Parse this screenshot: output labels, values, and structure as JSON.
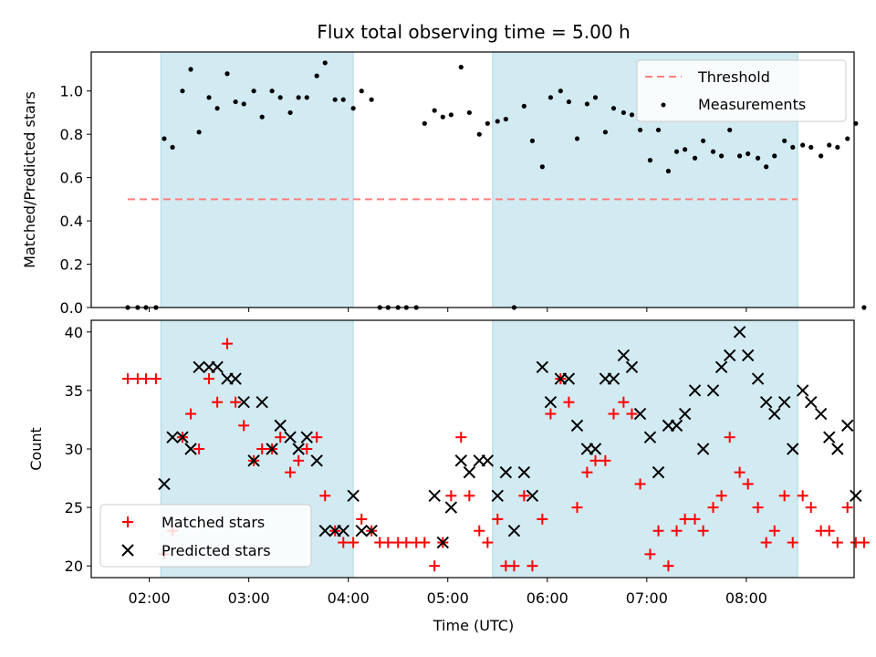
{
  "figure": {
    "title": "Flux total observing time = 5.00 h",
    "xlabel": "Time (UTC)"
  },
  "chart_data": [
    {
      "type": "scatter",
      "name": "ratio-panel",
      "ylabel": "Matched/Predicted stars",
      "xlim": [
        "01:25",
        "09:05"
      ],
      "ylim": [
        0,
        1.18
      ],
      "xticks": [
        "02:00",
        "03:00",
        "04:00",
        "05:00",
        "06:00",
        "07:00",
        "08:00"
      ],
      "yticks": [
        "0.0",
        "0.2",
        "0.4",
        "0.6",
        "0.8",
        "1.0"
      ],
      "shaded_intervals": [
        [
          "02:07",
          "04:03"
        ],
        [
          "05:27",
          "08:31"
        ]
      ],
      "threshold": {
        "name": "Threshold",
        "y": 0.5,
        "x_start": "01:47",
        "x_end": "08:31",
        "color": "#ff7f7f"
      },
      "series": [
        {
          "name": "Measurements",
          "color": "#000000",
          "points": [
            [
              "01:47",
              0.0
            ],
            [
              "01:53",
              0.0
            ],
            [
              "01:58",
              0.0
            ],
            [
              "02:04",
              0.0
            ],
            [
              "02:09",
              0.78
            ],
            [
              "02:14",
              0.74
            ],
            [
              "02:20",
              1.0
            ],
            [
              "02:25",
              1.1
            ],
            [
              "02:30",
              0.81
            ],
            [
              "02:36",
              0.97
            ],
            [
              "02:41",
              0.92
            ],
            [
              "02:47",
              1.08
            ],
            [
              "02:52",
              0.95
            ],
            [
              "02:57",
              0.94
            ],
            [
              "03:03",
              1.0
            ],
            [
              "03:08",
              0.88
            ],
            [
              "03:14",
              1.0
            ],
            [
              "03:19",
              0.97
            ],
            [
              "03:25",
              0.9
            ],
            [
              "03:30",
              0.97
            ],
            [
              "03:35",
              0.97
            ],
            [
              "03:41",
              1.07
            ],
            [
              "03:46",
              1.13
            ],
            [
              "03:52",
              0.96
            ],
            [
              "03:57",
              0.96
            ],
            [
              "04:03",
              0.92
            ],
            [
              "04:08",
              1.0
            ],
            [
              "04:14",
              0.96
            ],
            [
              "04:19",
              0.0
            ],
            [
              "04:24",
              0.0
            ],
            [
              "04:30",
              0.0
            ],
            [
              "04:35",
              0.0
            ],
            [
              "04:41",
              0.0
            ],
            [
              "04:46",
              0.85
            ],
            [
              "04:52",
              0.91
            ],
            [
              "04:57",
              0.88
            ],
            [
              "05:02",
              0.89
            ],
            [
              "05:08",
              1.11
            ],
            [
              "05:13",
              0.9
            ],
            [
              "05:19",
              0.8
            ],
            [
              "05:24",
              0.85
            ],
            [
              "05:30",
              0.86
            ],
            [
              "05:35",
              0.87
            ],
            [
              "05:40",
              0.0
            ],
            [
              "05:46",
              0.93
            ],
            [
              "05:51",
              0.77
            ],
            [
              "05:57",
              0.65
            ],
            [
              "06:02",
              0.97
            ],
            [
              "06:08",
              1.0
            ],
            [
              "06:13",
              0.95
            ],
            [
              "06:18",
              0.78
            ],
            [
              "06:24",
              0.94
            ],
            [
              "06:29",
              0.97
            ],
            [
              "06:35",
              0.81
            ],
            [
              "06:40",
              0.92
            ],
            [
              "06:46",
              0.9
            ],
            [
              "06:51",
              0.89
            ],
            [
              "06:56",
              0.82
            ],
            [
              "07:02",
              0.68
            ],
            [
              "07:07",
              0.82
            ],
            [
              "07:13",
              0.63
            ],
            [
              "07:18",
              0.72
            ],
            [
              "07:23",
              0.73
            ],
            [
              "07:29",
              0.69
            ],
            [
              "07:34",
              0.77
            ],
            [
              "07:40",
              0.72
            ],
            [
              "07:45",
              0.7
            ],
            [
              "07:50",
              0.82
            ],
            [
              "07:56",
              0.7
            ],
            [
              "08:01",
              0.71
            ],
            [
              "08:07",
              0.69
            ],
            [
              "08:12",
              0.65
            ],
            [
              "08:17",
              0.7
            ],
            [
              "08:23",
              0.77
            ],
            [
              "08:28",
              0.74
            ],
            [
              "08:34",
              0.75
            ],
            [
              "08:39",
              0.74
            ],
            [
              "08:45",
              0.7
            ],
            [
              "08:50",
              0.75
            ],
            [
              "08:55",
              0.74
            ],
            [
              "09:01",
              0.78
            ],
            [
              "09:06",
              0.85
            ],
            [
              "09:11",
              0.0
            ]
          ]
        }
      ],
      "legend_position": "upper-right"
    },
    {
      "type": "scatter",
      "name": "count-panel",
      "ylabel": "Count",
      "xlim": [
        "01:25",
        "09:05"
      ],
      "ylim": [
        19.0,
        41.0
      ],
      "xticks": [
        "02:00",
        "03:00",
        "04:00",
        "05:00",
        "06:00",
        "07:00",
        "08:00"
      ],
      "yticks": [
        "20",
        "25",
        "30",
        "35",
        "40"
      ],
      "shaded_intervals": [
        [
          "02:07",
          "04:03"
        ],
        [
          "05:27",
          "08:31"
        ]
      ],
      "series": [
        {
          "name": "Matched stars",
          "marker": "plus",
          "color": "#ff0000",
          "points": [
            [
              "01:47",
              36
            ],
            [
              "01:53",
              36
            ],
            [
              "01:58",
              36
            ],
            [
              "02:04",
              36
            ],
            [
              "02:09",
              21
            ],
            [
              "02:14",
              23
            ],
            [
              "02:20",
              31
            ],
            [
              "02:25",
              33
            ],
            [
              "02:30",
              30
            ],
            [
              "02:36",
              36
            ],
            [
              "02:41",
              34
            ],
            [
              "02:47",
              39
            ],
            [
              "02:52",
              34
            ],
            [
              "02:57",
              32
            ],
            [
              "03:03",
              29
            ],
            [
              "03:08",
              30
            ],
            [
              "03:14",
              30
            ],
            [
              "03:19",
              31
            ],
            [
              "03:25",
              28
            ],
            [
              "03:30",
              29
            ],
            [
              "03:35",
              30
            ],
            [
              "03:41",
              31
            ],
            [
              "03:46",
              26
            ],
            [
              "03:52",
              23
            ],
            [
              "03:57",
              22
            ],
            [
              "04:03",
              22
            ],
            [
              "04:08",
              24
            ],
            [
              "04:14",
              23
            ],
            [
              "04:19",
              22
            ],
            [
              "04:24",
              22
            ],
            [
              "04:30",
              22
            ],
            [
              "04:35",
              22
            ],
            [
              "04:41",
              22
            ],
            [
              "04:46",
              22
            ],
            [
              "04:52",
              20
            ],
            [
              "04:57",
              22
            ],
            [
              "05:02",
              26
            ],
            [
              "05:08",
              31
            ],
            [
              "05:13",
              26
            ],
            [
              "05:19",
              23
            ],
            [
              "05:24",
              22
            ],
            [
              "05:30",
              24
            ],
            [
              "05:35",
              20
            ],
            [
              "05:40",
              20
            ],
            [
              "05:46",
              26
            ],
            [
              "05:51",
              20
            ],
            [
              "05:57",
              24
            ],
            [
              "06:02",
              33
            ],
            [
              "06:08",
              36
            ],
            [
              "06:13",
              34
            ],
            [
              "06:18",
              25
            ],
            [
              "06:24",
              28
            ],
            [
              "06:29",
              29
            ],
            [
              "06:35",
              29
            ],
            [
              "06:40",
              33
            ],
            [
              "06:46",
              34
            ],
            [
              "06:51",
              33
            ],
            [
              "06:56",
              27
            ],
            [
              "07:02",
              21
            ],
            [
              "07:07",
              23
            ],
            [
              "07:13",
              20
            ],
            [
              "07:18",
              23
            ],
            [
              "07:23",
              24
            ],
            [
              "07:29",
              24
            ],
            [
              "07:34",
              23
            ],
            [
              "07:40",
              25
            ],
            [
              "07:45",
              26
            ],
            [
              "07:50",
              31
            ],
            [
              "07:56",
              28
            ],
            [
              "08:01",
              27
            ],
            [
              "08:07",
              25
            ],
            [
              "08:12",
              22
            ],
            [
              "08:17",
              23
            ],
            [
              "08:23",
              26
            ],
            [
              "08:28",
              22
            ],
            [
              "08:34",
              26
            ],
            [
              "08:39",
              25
            ],
            [
              "08:45",
              23
            ],
            [
              "08:50",
              23
            ],
            [
              "08:55",
              22
            ],
            [
              "09:01",
              25
            ],
            [
              "09:06",
              22
            ],
            [
              "09:11",
              22
            ]
          ]
        },
        {
          "name": "Predicted stars",
          "marker": "x",
          "color": "#000000",
          "points": [
            [
              "02:09",
              27
            ],
            [
              "02:14",
              31
            ],
            [
              "02:20",
              31
            ],
            [
              "02:25",
              30
            ],
            [
              "02:30",
              37
            ],
            [
              "02:36",
              37
            ],
            [
              "02:41",
              37
            ],
            [
              "02:47",
              36
            ],
            [
              "02:52",
              36
            ],
            [
              "02:57",
              34
            ],
            [
              "03:03",
              29
            ],
            [
              "03:08",
              34
            ],
            [
              "03:14",
              30
            ],
            [
              "03:19",
              32
            ],
            [
              "03:25",
              31
            ],
            [
              "03:30",
              30
            ],
            [
              "03:35",
              31
            ],
            [
              "03:41",
              29
            ],
            [
              "03:46",
              23
            ],
            [
              "03:52",
              23
            ],
            [
              "03:57",
              23
            ],
            [
              "04:03",
              26
            ],
            [
              "04:08",
              23
            ],
            [
              "04:14",
              23
            ],
            [
              "04:52",
              26
            ],
            [
              "04:57",
              22
            ],
            [
              "05:02",
              25
            ],
            [
              "05:08",
              29
            ],
            [
              "05:13",
              28
            ],
            [
              "05:19",
              29
            ],
            [
              "05:24",
              29
            ],
            [
              "05:30",
              26
            ],
            [
              "05:35",
              28
            ],
            [
              "05:40",
              23
            ],
            [
              "05:46",
              28
            ],
            [
              "05:51",
              26
            ],
            [
              "05:57",
              37
            ],
            [
              "06:02",
              34
            ],
            [
              "06:08",
              36
            ],
            [
              "06:13",
              36
            ],
            [
              "06:18",
              32
            ],
            [
              "06:24",
              30
            ],
            [
              "06:29",
              30
            ],
            [
              "06:35",
              36
            ],
            [
              "06:40",
              36
            ],
            [
              "06:46",
              38
            ],
            [
              "06:51",
              37
            ],
            [
              "06:56",
              33
            ],
            [
              "07:02",
              31
            ],
            [
              "07:07",
              28
            ],
            [
              "07:13",
              32
            ],
            [
              "07:18",
              32
            ],
            [
              "07:23",
              33
            ],
            [
              "07:29",
              35
            ],
            [
              "07:34",
              30
            ],
            [
              "07:40",
              35
            ],
            [
              "07:45",
              37
            ],
            [
              "07:50",
              38
            ],
            [
              "07:56",
              40
            ],
            [
              "08:01",
              38
            ],
            [
              "08:07",
              36
            ],
            [
              "08:12",
              34
            ],
            [
              "08:17",
              33
            ],
            [
              "08:23",
              34
            ],
            [
              "08:28",
              30
            ],
            [
              "08:34",
              35
            ],
            [
              "08:39",
              34
            ],
            [
              "08:45",
              33
            ],
            [
              "08:50",
              31
            ],
            [
              "08:55",
              30
            ],
            [
              "09:01",
              32
            ],
            [
              "09:06",
              26
            ]
          ]
        }
      ],
      "legend_position": "lower-left"
    }
  ],
  "colors": {
    "shade": "#add8e6",
    "threshold": "#ff7f7f",
    "matched": "#ff0000",
    "predicted": "#000000",
    "measurements": "#000000"
  }
}
